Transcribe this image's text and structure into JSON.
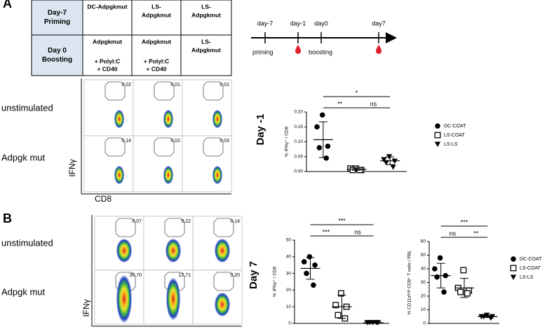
{
  "panel_labels": [
    "A",
    "B"
  ],
  "table": {
    "rows": [
      [
        [
          "Day-7",
          "Priming"
        ],
        [
          "DC-Adpgkmut"
        ],
        [
          "LS-",
          "Adpgkmut"
        ],
        [
          "LS-",
          "Adpgkmut"
        ]
      ],
      [
        [
          "Day 0",
          "Boosting"
        ],
        [
          "Adpgkmut",
          "+ PolyI:C",
          "+ CD40"
        ],
        [
          "Adpgkmut",
          "+ PolyI:C",
          "+ CD40"
        ],
        [
          "LS-",
          "Adpgkmut"
        ]
      ]
    ]
  },
  "timeline": {
    "top_labels": [
      "day-7",
      "day-1",
      "day0",
      "day7"
    ],
    "bottom_labels": [
      "priming",
      "boosting"
    ]
  },
  "flow_a": {
    "row_labels": [
      "unstimulated",
      "Adpgk mut"
    ],
    "gates": [
      [
        "0,02",
        "0,01",
        "0,01"
      ],
      [
        "0,14",
        "0,02",
        "0,03"
      ]
    ],
    "y_axis": "IFNγ",
    "x_axis": "CD8",
    "side_label": "Day -1"
  },
  "flow_b": {
    "row_labels": [
      "unstimulated",
      "Adpgk mut"
    ],
    "gates": [
      [
        "0,07",
        "0,22",
        "0,14"
      ],
      [
        "36,70",
        "12,71",
        "0,20"
      ]
    ],
    "y_axis": "IFNγ",
    "side_label": "Day 7"
  },
  "chart_data": [
    {
      "type": "strip",
      "ylabel": "% IFNγ⁺ / CD8",
      "ylim": [
        0,
        0.2
      ],
      "yticks": [
        {
          "value": 0,
          "label": "0.00"
        },
        {
          "value": 0.05,
          "label": "0.05"
        },
        {
          "value": 0.1,
          "label": "0.10"
        },
        {
          "value": 0.15,
          "label": "0.15"
        },
        {
          "value": 0.2,
          "label": "0.20"
        }
      ],
      "series": [
        {
          "name": "DC-COAT",
          "marker": "circle",
          "color": "#000000",
          "values": [
            0.19,
            0.15,
            0.085,
            0.08,
            0.045
          ],
          "mean": 0.107,
          "sd": 0.06
        },
        {
          "name": "LS-COAT",
          "marker": "square",
          "color": "#000000",
          "values": [
            0.01,
            0.01,
            0.005,
            0.005,
            0.005
          ],
          "mean": 0.007,
          "sd": 0.003
        },
        {
          "name": "LS-LS",
          "marker": "triangle",
          "color": "#000000",
          "values": [
            0.05,
            0.04,
            0.035,
            0.03,
            0.015
          ],
          "mean": 0.036,
          "sd": 0.013
        }
      ],
      "annotations": [
        {
          "text": "*",
          "pair": [
            0,
            2
          ]
        },
        {
          "text": "**",
          "pair": [
            0,
            1
          ]
        },
        {
          "text": "ns",
          "pair": [
            1,
            2
          ]
        }
      ],
      "legend": true
    },
    {
      "type": "strip",
      "ylabel": "% IFNγ⁺ / CD8",
      "ylim": [
        0,
        50
      ],
      "yticks": [
        0,
        10,
        20,
        30,
        40,
        50
      ],
      "series": [
        {
          "name": "DC-COAT",
          "marker": "circle",
          "color": "#000000",
          "values": [
            40,
            37,
            35,
            30,
            23
          ],
          "mean": 33,
          "sd": 6.5
        },
        {
          "name": "LS-COAT",
          "marker": "square",
          "color": "#000000",
          "values": [
            18,
            11,
            10,
            5,
            3
          ],
          "mean": 10,
          "sd": 7
        },
        {
          "name": "LS-LS",
          "marker": "triangle",
          "color": "#000000",
          "values": [
            0.5,
            0.5,
            0.5,
            0.5,
            0.5
          ],
          "mean": 0.5,
          "sd": 0.2
        }
      ],
      "annotations": [
        {
          "text": "***",
          "pair": [
            0,
            2
          ]
        },
        {
          "text": "***",
          "pair": [
            0,
            1
          ]
        },
        {
          "text": "ns",
          "pair": [
            1,
            2
          ]
        }
      ],
      "legend": false
    },
    {
      "type": "strip",
      "ylabel": "% CD11aʰⁱᵍʰ CD8⁺ T cells / PBL",
      "ylim": [
        0,
        60
      ],
      "yticks": [
        0,
        10,
        20,
        30,
        40,
        50,
        60
      ],
      "series": [
        {
          "name": "DC-COAT",
          "marker": "circle",
          "color": "#000000",
          "values": [
            48,
            40,
            35,
            34,
            23
          ],
          "mean": 35,
          "sd": 9
        },
        {
          "name": "LS-COAT",
          "marker": "square",
          "color": "#000000",
          "values": [
            39,
            26,
            24,
            23,
            22
          ],
          "mean": 26,
          "sd": 7
        },
        {
          "name": "LS-LS",
          "marker": "triangle",
          "color": "#000000",
          "values": [
            6,
            5,
            5,
            5,
            4
          ],
          "mean": 5,
          "sd": 0.7
        }
      ],
      "annotations": [
        {
          "text": "***",
          "pair": [
            0,
            2
          ]
        },
        {
          "text": "ns",
          "pair": [
            0,
            1
          ]
        },
        {
          "text": "**",
          "pair": [
            1,
            2
          ]
        }
      ],
      "legend": true
    }
  ]
}
